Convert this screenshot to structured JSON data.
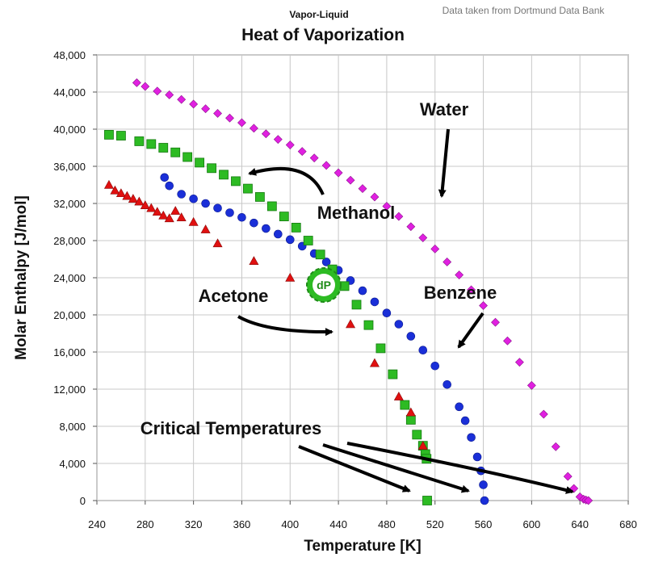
{
  "credit": "Data taken from Dortmund Data Bank",
  "logo_text": "dP",
  "chart_data": {
    "type": "scatter",
    "supertitle": "Vapor-Liquid",
    "title": "Heat of Vaporization",
    "xlabel": "Temperature [K]",
    "ylabel": "Molar Enthalpy [J/mol]",
    "xlim": [
      240,
      680
    ],
    "ylim": [
      0,
      48000
    ],
    "grid": true,
    "x_ticks": [
      240,
      280,
      320,
      360,
      400,
      440,
      480,
      520,
      560,
      600,
      640,
      680
    ],
    "y_ticks": [
      0,
      4000,
      8000,
      12000,
      16000,
      20000,
      24000,
      28000,
      32000,
      36000,
      40000,
      44000,
      48000
    ],
    "x_tick_labels": [
      "240",
      "280",
      "320",
      "360",
      "400",
      "440",
      "480",
      "520",
      "560",
      "600",
      "640",
      "680"
    ],
    "y_tick_labels": [
      "0",
      "4,000",
      "8,000",
      "12,000",
      "16,000",
      "20,000",
      "24,000",
      "28,000",
      "32,000",
      "36,000",
      "40,000",
      "44,000",
      "48,000"
    ],
    "series": [
      {
        "name": "Water",
        "marker": "diamond",
        "color": "#e020e0",
        "x": [
          273,
          280,
          290,
          300,
          310,
          320,
          330,
          340,
          350,
          360,
          370,
          380,
          390,
          400,
          410,
          420,
          430,
          440,
          450,
          460,
          470,
          480,
          490,
          500,
          510,
          520,
          530,
          540,
          550,
          560,
          570,
          580,
          590,
          600,
          610,
          620,
          630,
          635,
          640,
          643,
          645,
          647
        ],
        "y": [
          45000,
          44600,
          44100,
          43700,
          43200,
          42700,
          42200,
          41700,
          41200,
          40700,
          40100,
          39500,
          38900,
          38300,
          37600,
          36900,
          36100,
          35300,
          34500,
          33600,
          32700,
          31700,
          30600,
          29500,
          28300,
          27100,
          25700,
          24300,
          22700,
          21000,
          19200,
          17200,
          14900,
          12400,
          9300,
          5800,
          2600,
          1300,
          400,
          150,
          60,
          0
        ]
      },
      {
        "name": "Benzene",
        "marker": "circle",
        "color": "#1a2fd8",
        "x": [
          296,
          300,
          310,
          320,
          330,
          340,
          350,
          360,
          370,
          380,
          390,
          400,
          410,
          420,
          430,
          440,
          450,
          460,
          470,
          480,
          490,
          500,
          510,
          520,
          530,
          540,
          545,
          550,
          555,
          558,
          560,
          561
        ],
        "y": [
          34800,
          33900,
          33000,
          32500,
          32000,
          31500,
          31000,
          30500,
          29900,
          29300,
          28700,
          28100,
          27400,
          26600,
          25700,
          24800,
          23700,
          22600,
          21400,
          20200,
          19000,
          17700,
          16200,
          14500,
          12500,
          10100,
          8600,
          6800,
          4700,
          3200,
          1700,
          0
        ]
      },
      {
        "name": "Methanol",
        "marker": "square",
        "color": "#2dbb23",
        "x": [
          250,
          260,
          275,
          285,
          295,
          305,
          315,
          325,
          335,
          345,
          355,
          365,
          375,
          385,
          395,
          405,
          415,
          425,
          435,
          445,
          455,
          465,
          475,
          485,
          495,
          500,
          505,
          510,
          512,
          513,
          513.5
        ],
        "y": [
          39400,
          39300,
          38700,
          38400,
          38000,
          37500,
          37000,
          36400,
          35800,
          35100,
          34400,
          33600,
          32700,
          31700,
          30600,
          29400,
          28000,
          26500,
          24900,
          23100,
          21100,
          18900,
          16400,
          13600,
          10300,
          8700,
          7100,
          5900,
          5000,
          4500,
          0
        ]
      },
      {
        "name": "Acetone",
        "marker": "triangle",
        "color": "#e01010",
        "x": [
          250,
          255,
          260,
          265,
          270,
          275,
          280,
          285,
          290,
          295,
          300,
          305,
          310,
          320,
          330,
          340,
          370,
          400,
          450,
          470,
          490,
          500,
          510
        ],
        "y": [
          34000,
          33400,
          33100,
          32800,
          32500,
          32200,
          31800,
          31500,
          31100,
          30700,
          30400,
          31200,
          30500,
          30000,
          29200,
          27700,
          25800,
          24000,
          19000,
          14800,
          11200,
          9500,
          5900
        ]
      }
    ],
    "annotations": [
      {
        "text": "Water"
      },
      {
        "text": "Methanol"
      },
      {
        "text": "Acetone"
      },
      {
        "text": "Benzene"
      },
      {
        "text": "Critical Temperatures"
      }
    ]
  }
}
